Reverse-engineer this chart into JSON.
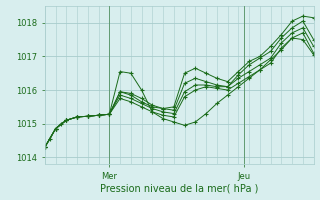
{
  "xlabel": "Pression niveau de la mer( hPa )",
  "ylim": [
    1013.8,
    1018.5
  ],
  "xlim": [
    0,
    50
  ],
  "yticks": [
    1014,
    1015,
    1016,
    1017,
    1018
  ],
  "xtick_positions": [
    12,
    37
  ],
  "xtick_labels": [
    "Mer",
    "Jeu"
  ],
  "bg_color": "#d8eeee",
  "grid_color": "#a8cccc",
  "line_color": "#1a6b1a",
  "marker": "+",
  "series": [
    [
      0,
      1014.3,
      1,
      1014.55,
      2,
      1014.85,
      3,
      1015.0,
      4,
      1015.1,
      6,
      1015.2,
      8,
      1015.22,
      10,
      1015.25,
      12,
      1015.28,
      14,
      1015.95,
      16,
      1015.85,
      18,
      1015.65,
      20,
      1015.5,
      22,
      1015.45,
      24,
      1015.5,
      26,
      1016.5,
      28,
      1016.65,
      30,
      1016.5,
      32,
      1016.35,
      34,
      1016.25,
      36,
      1016.55,
      38,
      1016.85,
      40,
      1017.0,
      42,
      1017.3,
      44,
      1017.65,
      46,
      1018.05,
      48,
      1018.2,
      50,
      1018.15
    ],
    [
      0,
      1014.3,
      2,
      1014.85,
      4,
      1015.1,
      6,
      1015.2,
      8,
      1015.22,
      10,
      1015.25,
      12,
      1015.28,
      14,
      1016.55,
      16,
      1016.5,
      18,
      1016.0,
      20,
      1015.35,
      22,
      1015.15,
      24,
      1015.05,
      26,
      1014.95,
      28,
      1015.05,
      30,
      1015.3,
      32,
      1015.6,
      34,
      1015.85,
      36,
      1016.1,
      38,
      1016.35,
      40,
      1016.6,
      42,
      1016.9,
      44,
      1017.2,
      46,
      1017.55,
      48,
      1017.5,
      50,
      1017.05
    ],
    [
      0,
      1014.3,
      2,
      1014.85,
      4,
      1015.1,
      6,
      1015.2,
      8,
      1015.22,
      10,
      1015.25,
      12,
      1015.28,
      14,
      1015.85,
      16,
      1015.75,
      18,
      1015.6,
      20,
      1015.45,
      22,
      1015.35,
      24,
      1015.3,
      26,
      1015.95,
      28,
      1016.15,
      30,
      1016.15,
      32,
      1016.1,
      34,
      1016.1,
      36,
      1016.35,
      38,
      1016.55,
      40,
      1016.75,
      42,
      1016.95,
      44,
      1017.4,
      46,
      1017.7,
      48,
      1017.85,
      50,
      1017.3
    ],
    [
      0,
      1014.3,
      2,
      1014.85,
      4,
      1015.1,
      6,
      1015.2,
      8,
      1015.22,
      10,
      1015.25,
      12,
      1015.28,
      14,
      1015.75,
      16,
      1015.65,
      18,
      1015.5,
      20,
      1015.35,
      22,
      1015.25,
      24,
      1015.2,
      26,
      1015.8,
      28,
      1016.0,
      30,
      1016.1,
      32,
      1016.05,
      34,
      1016.0,
      36,
      1016.2,
      38,
      1016.4,
      40,
      1016.6,
      42,
      1016.8,
      44,
      1017.25,
      46,
      1017.55,
      48,
      1017.7,
      50,
      1017.1
    ],
    [
      0,
      1014.3,
      2,
      1014.85,
      4,
      1015.1,
      6,
      1015.2,
      8,
      1015.22,
      10,
      1015.25,
      12,
      1015.28,
      14,
      1015.95,
      16,
      1015.9,
      18,
      1015.75,
      20,
      1015.55,
      22,
      1015.45,
      24,
      1015.4,
      26,
      1016.2,
      28,
      1016.35,
      30,
      1016.25,
      32,
      1016.15,
      34,
      1016.1,
      36,
      1016.45,
      38,
      1016.75,
      40,
      1016.95,
      42,
      1017.15,
      44,
      1017.55,
      46,
      1017.85,
      48,
      1018.05,
      50,
      1017.5
    ]
  ]
}
